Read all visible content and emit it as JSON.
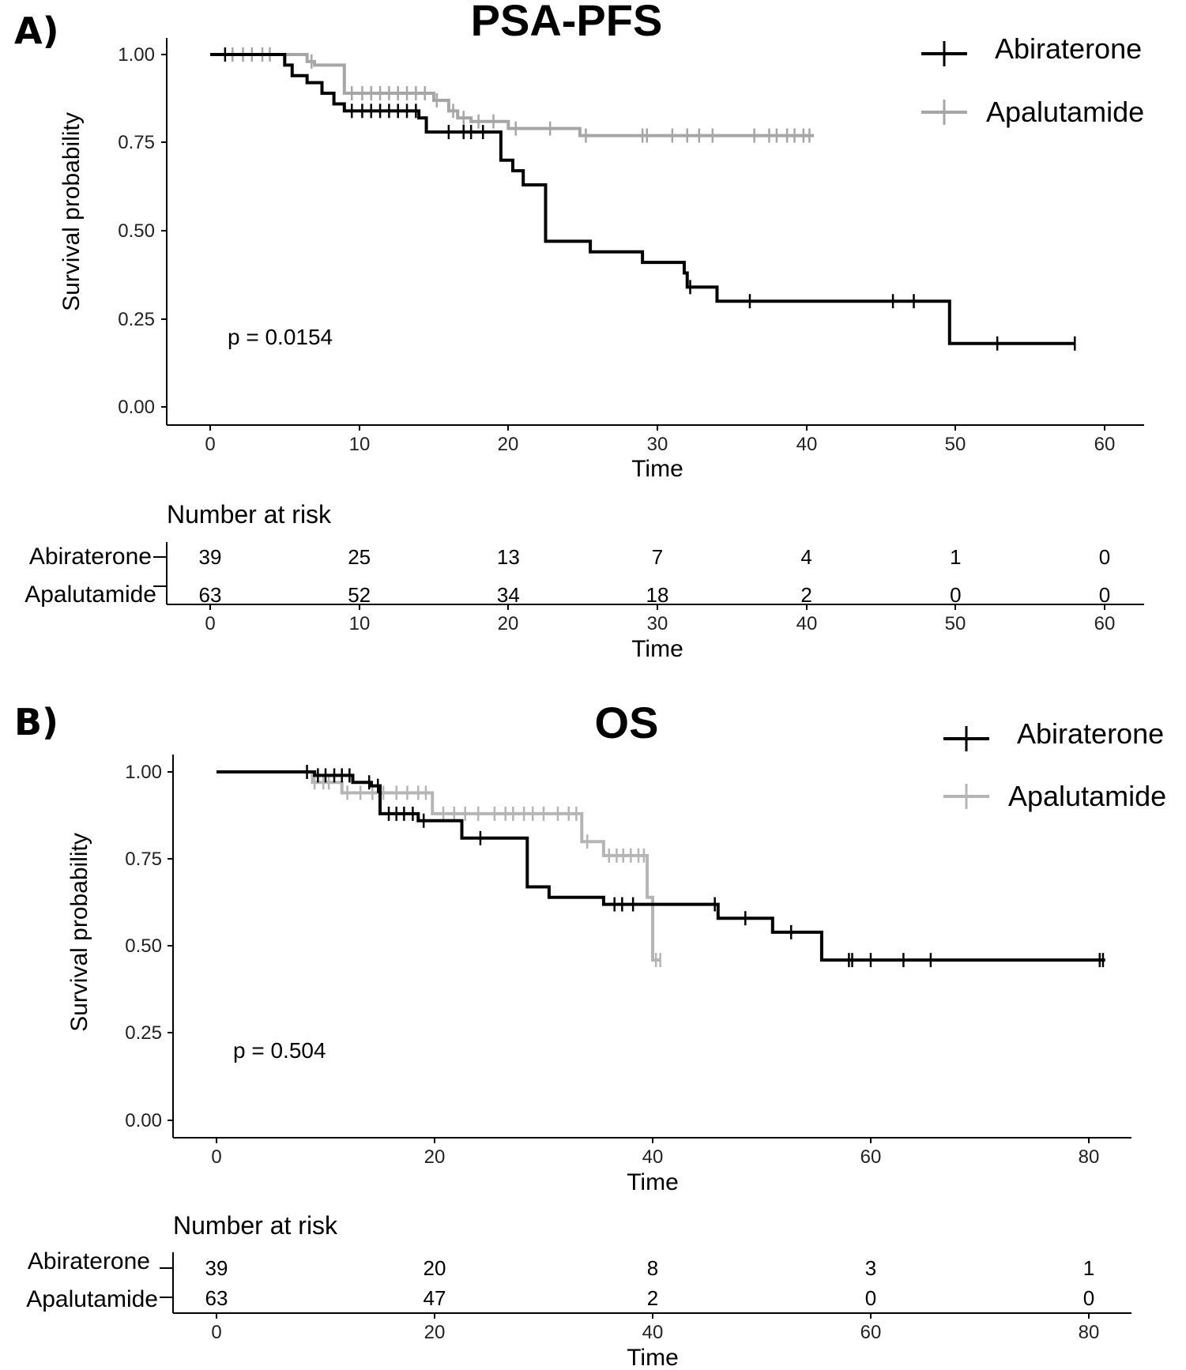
{
  "chart_data": [
    {
      "type": "line",
      "panel_label": "A)",
      "title": "PSA-PFS",
      "xlabel": "Time",
      "ylabel": "Survival probability",
      "xlim": [
        0,
        60
      ],
      "ylim": [
        0,
        1
      ],
      "xticks": [
        "0",
        "10",
        "20",
        "30",
        "40",
        "50",
        "60"
      ],
      "yticks": [
        "0.00",
        "0.25",
        "0.50",
        "0.75",
        "1.00"
      ],
      "annotation": "p = 0.0154",
      "legend_position": "top-right",
      "series": [
        {
          "name": "Abiraterone",
          "color": "#000000",
          "steps": [
            [
              0,
              1.0
            ],
            [
              5,
              0.97
            ],
            [
              5.5,
              0.94
            ],
            [
              6.5,
              0.92
            ],
            [
              7.5,
              0.89
            ],
            [
              8.5,
              0.86
            ],
            [
              8.3,
              0.86
            ],
            [
              9,
              0.84
            ],
            [
              14,
              0.82
            ],
            [
              14.5,
              0.78
            ],
            [
              19.5,
              0.7
            ],
            [
              20.3,
              0.67
            ],
            [
              21,
              0.63
            ],
            [
              22.5,
              0.47
            ],
            [
              25.5,
              0.44
            ],
            [
              29,
              0.41
            ],
            [
              31.8,
              0.38
            ],
            [
              32,
              0.34
            ],
            [
              34,
              0.3
            ],
            [
              49.6,
              0.18
            ],
            [
              58,
              0.18
            ]
          ],
          "censor_x": [
            1,
            9.5,
            10.2,
            10.8,
            11.4,
            12,
            12.6,
            13.2,
            13.8,
            16,
            17,
            17.5,
            18.3,
            32.2,
            36.2,
            45.8,
            47.2,
            52.8,
            58
          ],
          "risk": [
            39,
            25,
            13,
            7,
            4,
            1,
            0
          ]
        },
        {
          "name": "Apalutamide",
          "color": "#a6a6a6",
          "steps": [
            [
              0,
              1.0
            ],
            [
              6.5,
              0.98
            ],
            [
              7,
              0.97
            ],
            [
              9,
              0.89
            ],
            [
              15,
              0.87
            ],
            [
              16,
              0.84
            ],
            [
              16.6,
              0.82
            ],
            [
              17.5,
              0.81
            ],
            [
              20,
              0.79
            ],
            [
              24.8,
              0.77
            ],
            [
              40.5,
              0.77
            ]
          ],
          "censor_x": [
            1.5,
            2.2,
            2.8,
            3.5,
            4,
            6.8,
            9.5,
            10.2,
            10.8,
            11.4,
            12,
            12.6,
            13.2,
            13.8,
            14.4,
            15.2,
            16.3,
            17,
            18,
            19,
            20.5,
            22.8,
            25.2,
            29,
            29.3,
            31,
            32,
            32.8,
            33.7,
            36.5,
            37.5,
            38,
            38.7,
            39.2,
            39.8,
            40.2
          ],
          "risk": [
            63,
            52,
            34,
            18,
            2,
            0,
            0
          ]
        }
      ],
      "risk_table": {
        "title": "Number at risk",
        "x": [
          0,
          10,
          20,
          30,
          40,
          50,
          60
        ],
        "xticks": [
          "0",
          "10",
          "20",
          "30",
          "40",
          "50",
          "60"
        ],
        "xlabel": "Time"
      }
    },
    {
      "type": "line",
      "panel_label": "B)",
      "title": "OS",
      "xlabel": "Time",
      "ylabel": "Survival probability",
      "xlim": [
        0,
        80
      ],
      "ylim": [
        0,
        1
      ],
      "xticks": [
        "0",
        "20",
        "40",
        "60",
        "80"
      ],
      "yticks": [
        "0.00",
        "0.25",
        "0.50",
        "0.75",
        "1.00"
      ],
      "annotation": "p = 0.504",
      "legend_position": "top-right",
      "series": [
        {
          "name": "Abiraterone",
          "color": "#000000",
          "steps": [
            [
              0,
              1.0
            ],
            [
              8.2,
              1.0
            ],
            [
              9,
              0.99
            ],
            [
              12.5,
              0.97
            ],
            [
              14.2,
              0.96
            ],
            [
              15,
              0.88
            ],
            [
              18.5,
              0.86
            ],
            [
              22.5,
              0.81
            ],
            [
              28.5,
              0.67
            ],
            [
              30.5,
              0.64
            ],
            [
              35.5,
              0.62
            ],
            [
              46,
              0.58
            ],
            [
              51,
              0.54
            ],
            [
              55.5,
              0.46
            ],
            [
              81.5,
              0.46
            ]
          ],
          "censor_x": [
            8.3,
            9.3,
            10,
            10.8,
            11.5,
            12.2,
            14,
            14.8,
            15.8,
            16.5,
            17.2,
            18,
            19,
            24.2,
            36.5,
            37.2,
            38.2,
            45.7,
            48.5,
            52.7,
            58,
            58.3,
            60,
            63,
            65.5,
            81,
            81.3
          ],
          "risk": [
            39,
            20,
            8,
            3,
            1
          ]
        },
        {
          "name": "Apalutamide",
          "color": "#b5b5b5",
          "steps": [
            [
              0,
              1.0
            ],
            [
              8.8,
              0.97
            ],
            [
              11.5,
              0.94
            ],
            [
              19.8,
              0.88
            ],
            [
              33.5,
              0.8
            ],
            [
              35.5,
              0.76
            ],
            [
              39.5,
              0.64
            ],
            [
              40,
              0.46
            ],
            [
              40.7,
              0.46
            ]
          ],
          "censor_x": [
            9,
            9.8,
            10.3,
            12,
            13.2,
            14.3,
            15.3,
            16.5,
            17.5,
            18.5,
            19.2,
            20.8,
            21.8,
            22.8,
            24,
            25.5,
            26.5,
            27.2,
            28.2,
            29,
            30,
            31.3,
            32.3,
            33,
            34,
            36,
            36.7,
            37.3,
            38,
            38.7,
            39.2,
            40.3,
            40.7
          ],
          "risk": [
            63,
            47,
            2,
            0,
            0
          ]
        }
      ],
      "risk_table": {
        "title": "Number at risk",
        "x": [
          0,
          20,
          40,
          60,
          80
        ],
        "xticks": [
          "0",
          "20",
          "40",
          "60",
          "80"
        ],
        "xlabel": "Time"
      }
    }
  ]
}
